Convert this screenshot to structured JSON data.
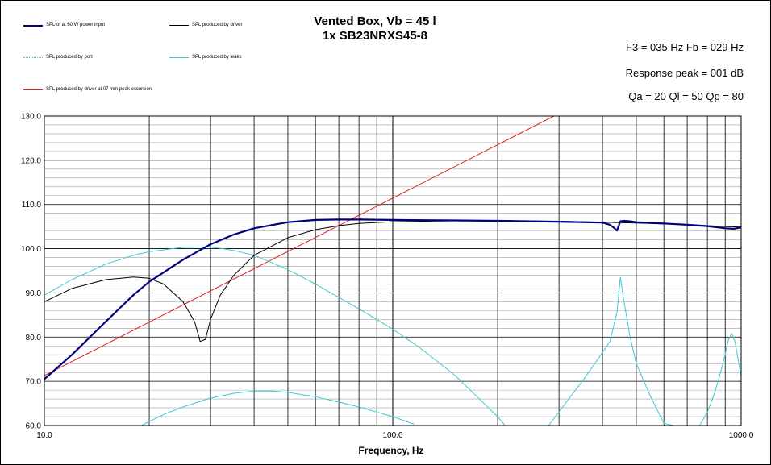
{
  "header": {
    "title_line1": "Vented Box, Vb = 45 l",
    "title_line2": "1x SB23NRXS45-8"
  },
  "info": {
    "f3_fb": "F3 = 035 Hz  Fb = 029 Hz",
    "response_peak": "Response peak = 001 dB",
    "q_values": "Qa = 20  Ql = 50  Qp = 80"
  },
  "legend": [
    {
      "label": "SPLtot at 60 W power input",
      "color": "#000080"
    },
    {
      "label": "SPL produced by driver",
      "color": "#000000"
    },
    {
      "label": "SPL produced by port",
      "color": "#40C8D0"
    },
    {
      "label": "SPL produced by leaks",
      "color": "#40C8D0"
    },
    {
      "label": "SPL produced by driver at 07 mm peak excursion",
      "color": "#E02020"
    }
  ],
  "chart_data": {
    "type": "line",
    "title": "Vented Box, Vb = 45 l\n1x SB23NRXS45-8",
    "xlabel": "Frequency,  Hz",
    "ylabel": "",
    "x_scale": "log",
    "xlim": [
      10,
      1000
    ],
    "ylim": [
      60,
      130
    ],
    "x_tick_labels": [
      "10.0",
      "100.0",
      "1000.0"
    ],
    "y_tick_labels": [
      "60.0",
      "70.0",
      "80.0",
      "90.0",
      "100.0",
      "110.0",
      "120.0",
      "130.0"
    ],
    "grid": true,
    "series": [
      {
        "name": "SPLtot at 60 W power input",
        "color": "#000080",
        "x": [
          10,
          12,
          15,
          18,
          20,
          25,
          30,
          35,
          40,
          50,
          60,
          70,
          80,
          100,
          150,
          200,
          300,
          400,
          420,
          430,
          440,
          450,
          460,
          480,
          500,
          600,
          700,
          800,
          900,
          950,
          1000
        ],
        "y": [
          70.5,
          76,
          83.5,
          89.5,
          92.5,
          97.5,
          101,
          103.2,
          104.6,
          106,
          106.5,
          106.6,
          106.6,
          106.5,
          106.4,
          106.3,
          106.1,
          105.9,
          105.4,
          104.8,
          104.1,
          106.2,
          106.3,
          106.2,
          106.0,
          105.7,
          105.4,
          105.1,
          104.6,
          104.5,
          104.8
        ]
      },
      {
        "name": "SPL produced by driver",
        "color": "#000000",
        "x": [
          10,
          12,
          15,
          18,
          20,
          22,
          25,
          27,
          28,
          29,
          30,
          32,
          35,
          40,
          50,
          60,
          70,
          80,
          100,
          150,
          200,
          300,
          400,
          500,
          600,
          700,
          800,
          900,
          1000
        ],
        "y": [
          88,
          91,
          93,
          93.6,
          93.3,
          92,
          88,
          83.5,
          79,
          79.5,
          84,
          89.5,
          94,
          98.5,
          102.5,
          104.3,
          105.2,
          105.7,
          106.1,
          106.3,
          106.3,
          106.2,
          106.0,
          105.8,
          105.6,
          105.4,
          105.2,
          105.0,
          104.9
        ]
      },
      {
        "name": "SPL produced by port",
        "color": "#40C8D0",
        "x": [
          10,
          12,
          15,
          18,
          20,
          25,
          30,
          35,
          40,
          50,
          60,
          70,
          80,
          100,
          120,
          150,
          180,
          200,
          210,
          280,
          320,
          350,
          380,
          420,
          440,
          450,
          460,
          480,
          500,
          550,
          600,
          640,
          700,
          760,
          800,
          840,
          880,
          920,
          940,
          960,
          1000
        ],
        "y": [
          89.5,
          93,
          96.5,
          98.5,
          99.3,
          100.3,
          100.4,
          99.6,
          98.5,
          95.3,
          92,
          89,
          86.4,
          81.8,
          77.5,
          71.5,
          65.5,
          62,
          60,
          60,
          66,
          70,
          74,
          79,
          85.5,
          93.5,
          88.5,
          80,
          74,
          66.5,
          60.5,
          60,
          60,
          60,
          63,
          67.5,
          73,
          79.5,
          80.8,
          79,
          71
        ]
      },
      {
        "name": "SPL produced by leaks",
        "color": "#40C8D0",
        "x": [
          19,
          22,
          25,
          30,
          35,
          40,
          45,
          50,
          60,
          70,
          80,
          100,
          115
        ],
        "y": [
          60,
          62.5,
          64.2,
          66.2,
          67.3,
          67.8,
          67.8,
          67.5,
          66.5,
          65.3,
          64.2,
          62,
          60.3
        ]
      },
      {
        "name": "SPL produced by driver at 07 mm peak excursion",
        "color": "#E02020",
        "x": [
          10,
          290
        ],
        "y": [
          71.3,
          130
        ]
      }
    ]
  }
}
